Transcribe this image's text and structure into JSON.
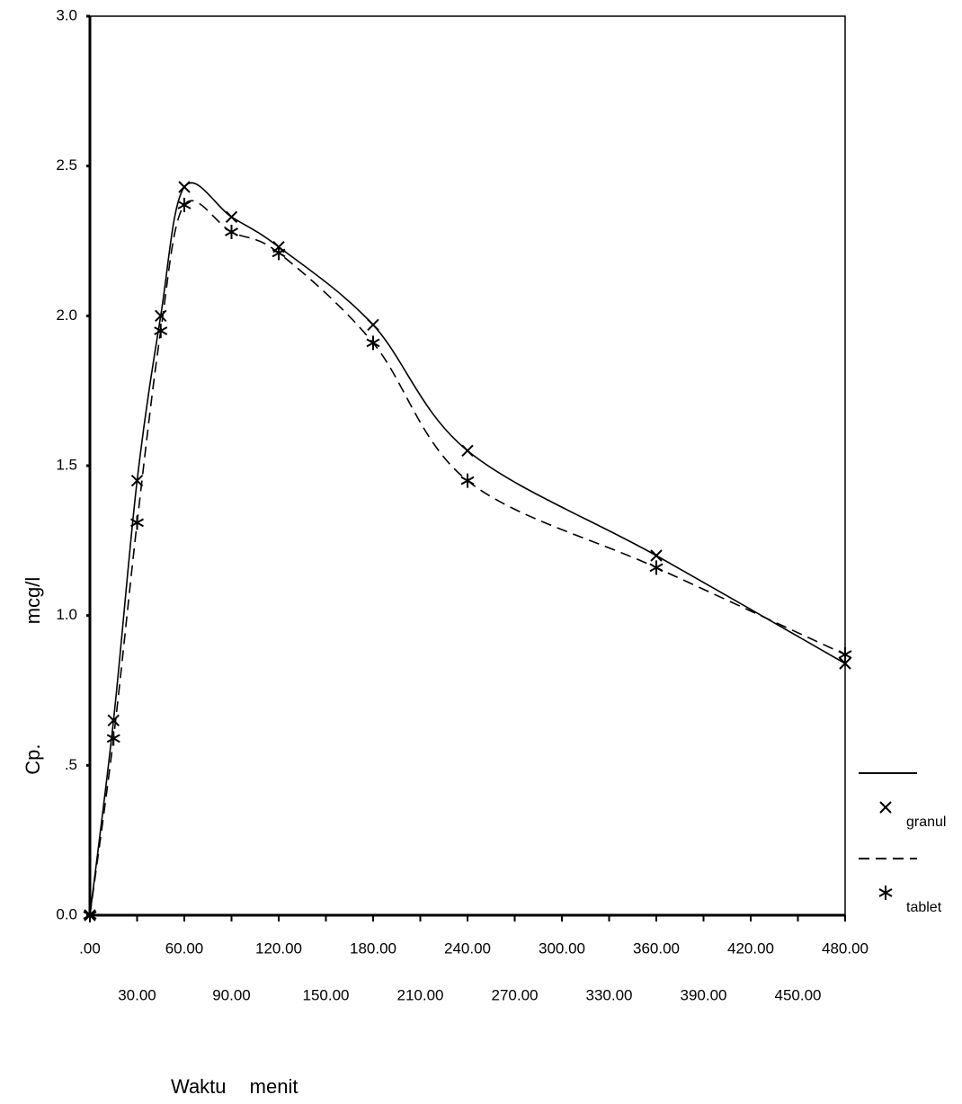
{
  "chart_data": {
    "type": "line",
    "ylabel": [
      "Cp.",
      "mcg/l"
    ],
    "xlabel": "Waktu menit",
    "x": [
      0,
      15,
      30,
      45,
      60,
      90,
      120,
      180,
      240,
      360,
      480
    ],
    "series": [
      {
        "name": "granul",
        "color": "#000000",
        "linestyle": "solid",
        "marker": "x",
        "values": [
          0,
          0.65,
          1.45,
          2.0,
          2.43,
          2.33,
          2.23,
          1.97,
          1.55,
          1.2,
          0.84
        ]
      },
      {
        "name": "tablet",
        "color": "#000000",
        "linestyle": "dashed",
        "marker": "asterisk",
        "values": [
          0,
          0.59,
          1.31,
          1.95,
          2.37,
          2.28,
          2.21,
          1.91,
          1.45,
          1.16,
          0.87
        ]
      }
    ],
    "xlim": [
      0,
      480
    ],
    "xticks": [
      {
        "value": 0,
        "label": ".00"
      },
      {
        "value": 30,
        "label": "30.00"
      },
      {
        "value": 60,
        "label": "60.00"
      },
      {
        "value": 90,
        "label": "90.00"
      },
      {
        "value": 120,
        "label": "120.00"
      },
      {
        "value": 150,
        "label": "150.00"
      },
      {
        "value": 180,
        "label": "180.00"
      },
      {
        "value": 210,
        "label": "210.00"
      },
      {
        "value": 240,
        "label": "240.00"
      },
      {
        "value": 270,
        "label": "270.00"
      },
      {
        "value": 300,
        "label": "300.00"
      },
      {
        "value": 330,
        "label": "330.00"
      },
      {
        "value": 360,
        "label": "360.00"
      },
      {
        "value": 390,
        "label": "390.00"
      },
      {
        "value": 420,
        "label": "420.00"
      },
      {
        "value": 450,
        "label": "450.00"
      },
      {
        "value": 480,
        "label": "480.00"
      }
    ],
    "ylim": [
      0,
      3
    ],
    "yticks": [
      {
        "value": 0,
        "label": "0.0"
      },
      {
        "value": 0.5,
        "label": ".5"
      },
      {
        "value": 1,
        "label": "1.0"
      },
      {
        "value": 1.5,
        "label": "1.5"
      },
      {
        "value": 2,
        "label": "2.0"
      },
      {
        "value": 2.5,
        "label": "2.5"
      },
      {
        "value": 3,
        "label": "3.0"
      }
    ],
    "grid": false,
    "legend": "right"
  }
}
